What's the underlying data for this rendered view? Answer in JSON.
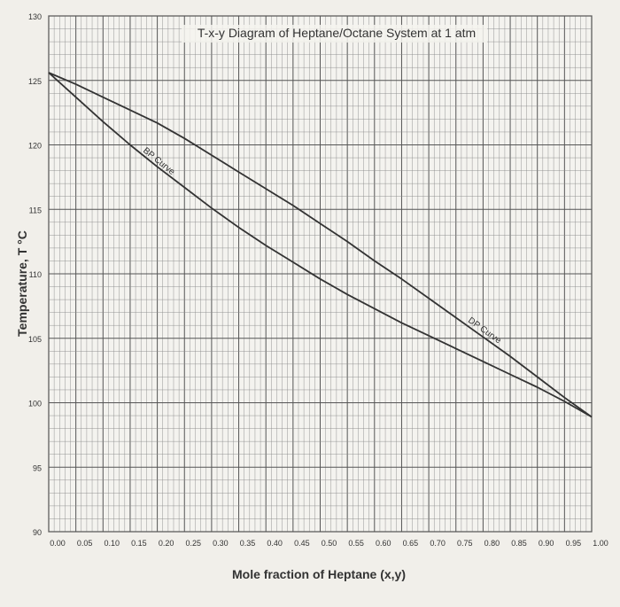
{
  "chart_data": {
    "type": "line",
    "title": "T-x-y Diagram of Heptane/Octane System at 1 atm",
    "xlabel": "Mole fraction of Heptane (x,y)",
    "ylabel": "Temperature, T °C",
    "xlim": [
      0,
      1
    ],
    "ylim": [
      90,
      130
    ],
    "grid": true,
    "x_ticks": [
      "0.00",
      "0.05",
      "0.10",
      "0.15",
      "0.20",
      "0.25",
      "0.30",
      "0.35",
      "0.40",
      "0.45",
      "0.50",
      "0.55",
      "0.60",
      "0.65",
      "0.70",
      "0.75",
      "0.80",
      "0.85",
      "0.90",
      "0.95",
      "1.00"
    ],
    "y_ticks": [
      "90",
      "95",
      "100",
      "105",
      "110",
      "115",
      "120",
      "125",
      "130"
    ],
    "series": [
      {
        "name": "BP Curve",
        "values": [
          {
            "x": 0.0,
            "y": 125.6
          },
          {
            "x": 0.05,
            "y": 123.7
          },
          {
            "x": 0.1,
            "y": 121.8
          },
          {
            "x": 0.15,
            "y": 120.0
          },
          {
            "x": 0.2,
            "y": 118.3
          },
          {
            "x": 0.25,
            "y": 116.7
          },
          {
            "x": 0.3,
            "y": 115.1
          },
          {
            "x": 0.35,
            "y": 113.6
          },
          {
            "x": 0.4,
            "y": 112.2
          },
          {
            "x": 0.45,
            "y": 110.9
          },
          {
            "x": 0.5,
            "y": 109.6
          },
          {
            "x": 0.55,
            "y": 108.4
          },
          {
            "x": 0.6,
            "y": 107.3
          },
          {
            "x": 0.65,
            "y": 106.2
          },
          {
            "x": 0.7,
            "y": 105.2
          },
          {
            "x": 0.75,
            "y": 104.2
          },
          {
            "x": 0.8,
            "y": 103.2
          },
          {
            "x": 0.85,
            "y": 102.2
          },
          {
            "x": 0.9,
            "y": 101.2
          },
          {
            "x": 0.95,
            "y": 100.1
          },
          {
            "x": 1.0,
            "y": 98.9
          }
        ]
      },
      {
        "name": "DP Curve",
        "values": [
          {
            "x": 0.0,
            "y": 125.6
          },
          {
            "x": 0.05,
            "y": 124.7
          },
          {
            "x": 0.1,
            "y": 123.7
          },
          {
            "x": 0.15,
            "y": 122.7
          },
          {
            "x": 0.2,
            "y": 121.7
          },
          {
            "x": 0.25,
            "y": 120.5
          },
          {
            "x": 0.3,
            "y": 119.2
          },
          {
            "x": 0.35,
            "y": 117.9
          },
          {
            "x": 0.4,
            "y": 116.6
          },
          {
            "x": 0.45,
            "y": 115.3
          },
          {
            "x": 0.5,
            "y": 113.9
          },
          {
            "x": 0.55,
            "y": 112.5
          },
          {
            "x": 0.6,
            "y": 111.0
          },
          {
            "x": 0.65,
            "y": 109.6
          },
          {
            "x": 0.7,
            "y": 108.1
          },
          {
            "x": 0.75,
            "y": 106.6
          },
          {
            "x": 0.8,
            "y": 105.1
          },
          {
            "x": 0.85,
            "y": 103.6
          },
          {
            "x": 0.9,
            "y": 102.0
          },
          {
            "x": 0.95,
            "y": 100.4
          },
          {
            "x": 1.0,
            "y": 98.9
          }
        ]
      }
    ],
    "annotations": [
      "BP Curve",
      "DP Curve"
    ]
  },
  "colors": {
    "background": "#e9e6df",
    "paper": "#f4f3ef",
    "grid_major": "#555555",
    "grid_minor": "#8a8a8a",
    "curve": "#333333"
  }
}
